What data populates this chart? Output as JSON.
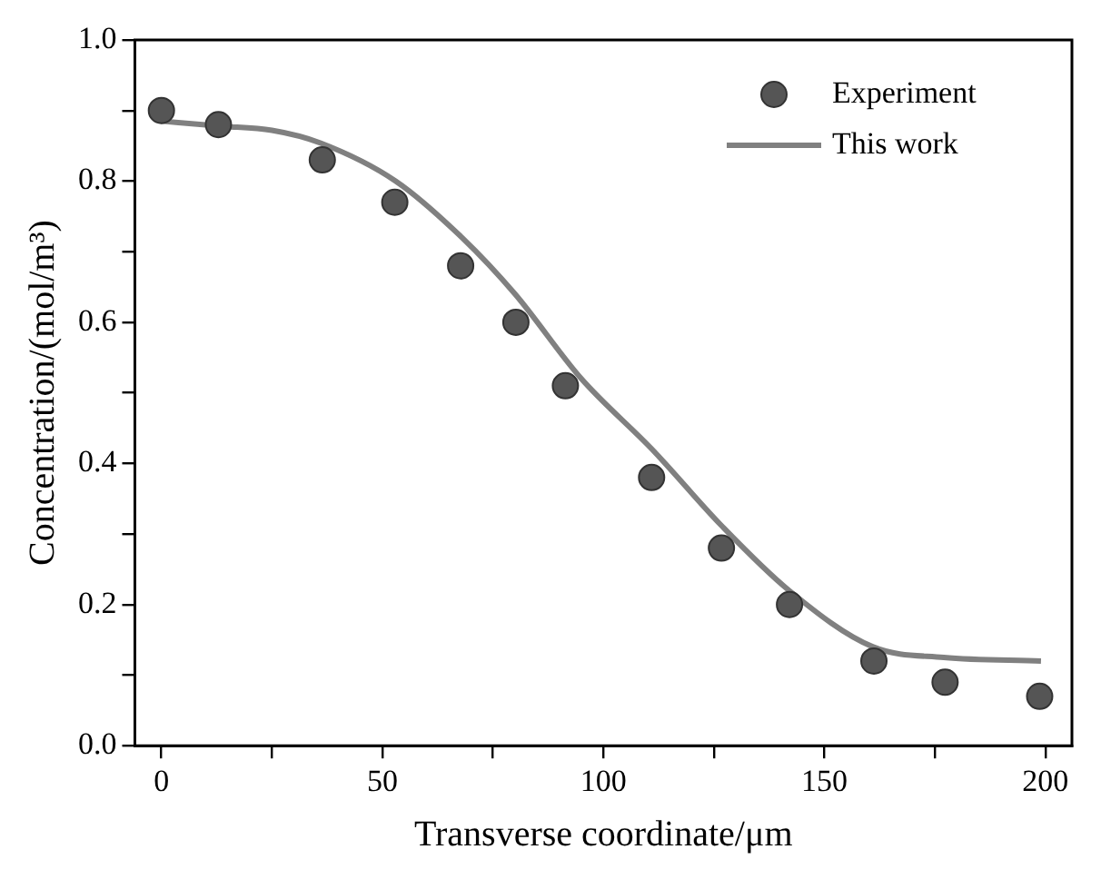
{
  "chart_data": {
    "type": "scatter",
    "xlabel": "Transverse coordinate/μm",
    "ylabel": "Concentration/(mol/m³)",
    "xlim": [
      -6,
      206
    ],
    "xticks": [
      0,
      {
        "value": 25,
        "label": null
      },
      50,
      {
        "value": 75,
        "label": null
      },
      100,
      {
        "value": 125,
        "label": null
      },
      150,
      {
        "value": 175,
        "label": null
      },
      200
    ],
    "ylim": [
      0,
      1
    ],
    "yticks": [
      "0.0",
      {
        "value": 0.1,
        "label": null
      },
      {
        "value": 0.2,
        "label": "0.2"
      },
      {
        "value": 0.3,
        "label": null
      },
      {
        "value": 0.4,
        "label": "0.4"
      },
      {
        "value": 0.5,
        "label": null
      },
      {
        "value": 0.6,
        "label": "0.6"
      },
      {
        "value": 0.7,
        "label": null
      },
      {
        "value": 0.8,
        "label": "0.8"
      },
      {
        "value": 0.9,
        "label": null
      },
      {
        "value": 1,
        "label": "1.0"
      }
    ],
    "legend": "top right",
    "grid": false,
    "series": [
      {
        "name": "Experiment",
        "type": "scatter",
        "marker": "circle",
        "color": "#555555",
        "x": [
          0,
          12.9,
          36.4,
          52.8,
          67.7,
          80.2,
          91.4,
          110.9,
          126.7,
          142.1,
          161.2,
          177.3,
          198.7
        ],
        "values": [
          0.9,
          0.88,
          0.83,
          0.77,
          0.68,
          0.6,
          0.51,
          0.38,
          0.28,
          0.2,
          0.12,
          0.09,
          0.07
        ]
      },
      {
        "name": "This work",
        "type": "line",
        "marker": "none",
        "line_style": "solid",
        "color": "#808080",
        "x": [
          0,
          13,
          25,
          36,
          53,
          68,
          80,
          95,
          111,
          127,
          142,
          161,
          177,
          199
        ],
        "values": [
          0.885,
          0.878,
          0.872,
          0.854,
          0.8,
          0.72,
          0.64,
          0.52,
          0.42,
          0.31,
          0.22,
          0.14,
          0.125,
          0.12
        ]
      }
    ]
  }
}
